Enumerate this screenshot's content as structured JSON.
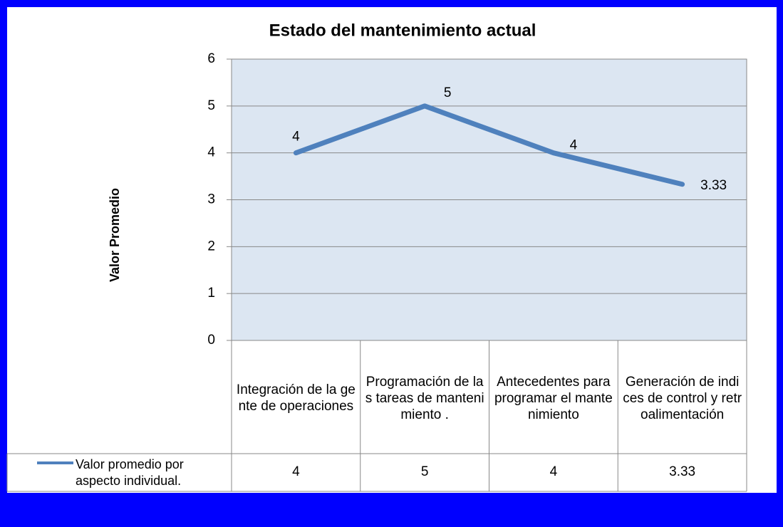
{
  "chart_data": {
    "type": "line",
    "title": "Estado del mantenimiento actual",
    "y_label": "Valor Promedio",
    "categories": [
      "Integración de la gente de operaciones",
      "Programación de las tareas de mantenimiento .",
      "Antecedentes para programar el mantenimiento",
      "Generación de indices de control y retroalimentación"
    ],
    "series": [
      {
        "name": "Valor promedio por aspecto individual.",
        "color": "#4f81bd",
        "values": [
          4,
          5,
          4,
          3.33
        ]
      }
    ],
    "ylim": [
      0,
      6
    ],
    "yticks": [
      0,
      1,
      2,
      3,
      4,
      5,
      6
    ],
    "grid": true,
    "data_table": true
  }
}
